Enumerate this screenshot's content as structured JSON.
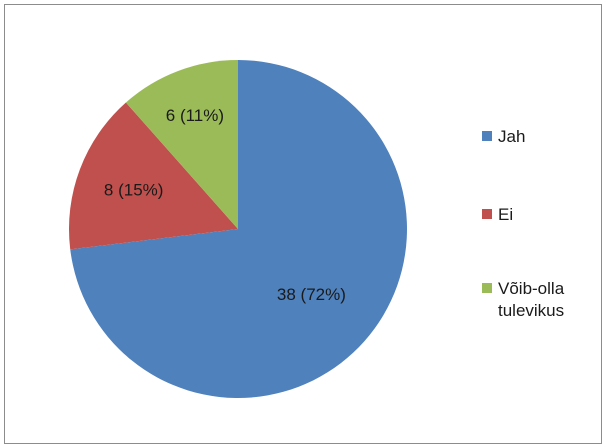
{
  "chart_data": {
    "type": "pie",
    "title": "",
    "slices": [
      {
        "label": "Jah",
        "value": 38,
        "percent": 72,
        "data_label": "38 (72%)",
        "color": "#4f81bd"
      },
      {
        "label": "Ei",
        "value": 8,
        "percent": 15,
        "data_label": "8 (15%)",
        "color": "#c0504d"
      },
      {
        "label": "Võib-olla tulevikus",
        "value": 6,
        "percent": 11,
        "data_label": "6 (11%)",
        "color": "#9bbb59"
      }
    ],
    "legend": {
      "position": "right",
      "items": [
        {
          "label": "Jah",
          "color": "#4f81bd"
        },
        {
          "label": "Ei",
          "color": "#c0504d"
        },
        {
          "label": "Võib-olla tulevikus",
          "color": "#9bbb59"
        }
      ]
    }
  }
}
